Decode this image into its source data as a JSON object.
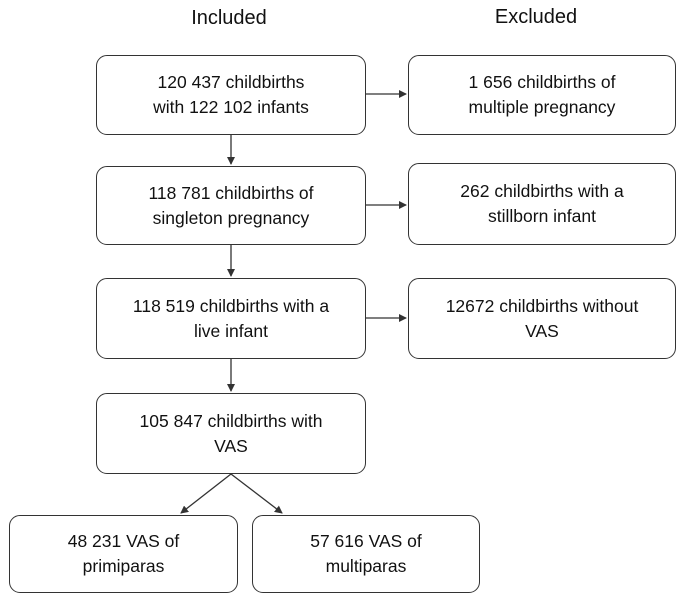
{
  "headers": {
    "included": "Included",
    "excluded": "Excluded"
  },
  "included_boxes": [
    {
      "text": "120 437 childbirths\nwith 122 102 infants"
    },
    {
      "text": "118 781 childbirths of\nsingleton pregnancy"
    },
    {
      "text": "118 519 childbirths with a\nlive infant"
    },
    {
      "text": "105 847 childbirths with\nVAS"
    }
  ],
  "excluded_boxes": [
    {
      "text": "1 656 childbirths of\nmultiple pregnancy"
    },
    {
      "text": "262 childbirths with a\nstillborn infant"
    },
    {
      "text": "12672 childbirths without\nVAS"
    }
  ],
  "split_boxes": [
    {
      "text": "48 231 VAS of\nprimiparas"
    },
    {
      "text": "57 616 VAS of\nmultiparas"
    }
  ]
}
